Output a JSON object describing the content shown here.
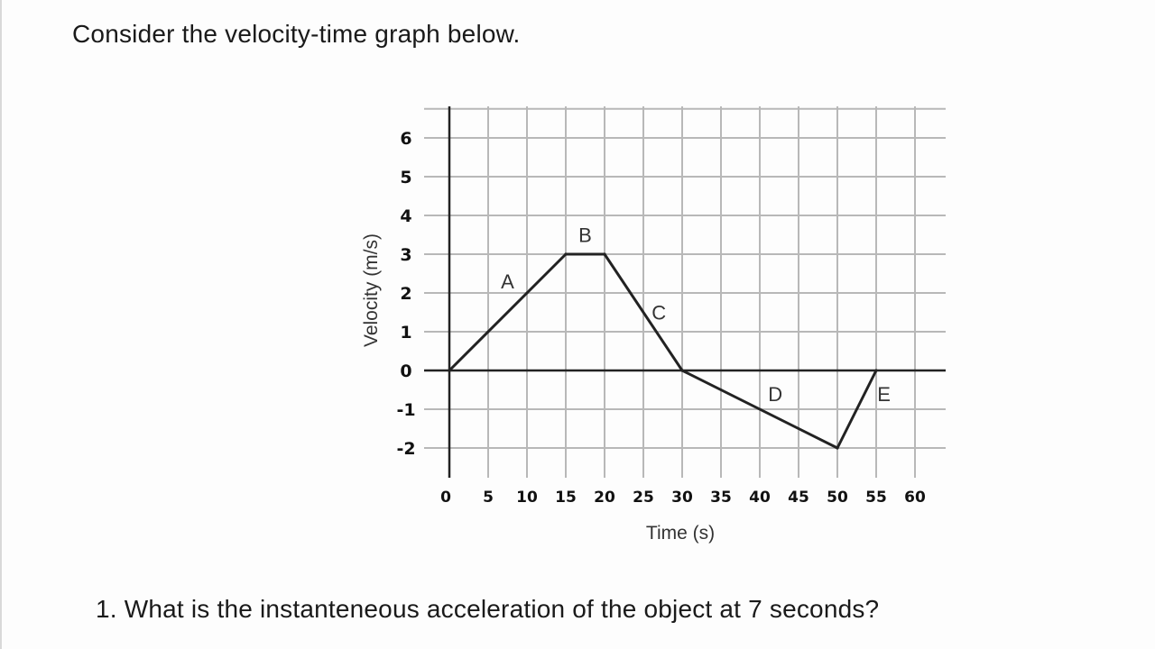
{
  "prompt": "Consider the velocity-time graph below.",
  "question": "1. What is the instanteneous acceleration of the object at 7 seconds?",
  "chart_data": {
    "type": "line",
    "title": "",
    "xlabel": "Time (s)",
    "ylabel": "Velocity (m/s)",
    "xlim": [
      0,
      60
    ],
    "ylim": [
      -2,
      6
    ],
    "grid": true,
    "x_ticks": [
      0,
      5,
      10,
      15,
      20,
      25,
      30,
      35,
      40,
      45,
      50,
      55,
      60
    ],
    "x_tick_labels": [
      "0",
      "5",
      "10",
      "15",
      "20",
      "25",
      "30",
      "35",
      "40",
      "45",
      "50",
      "55",
      "60"
    ],
    "y_ticks": [
      6,
      5,
      4,
      3,
      2,
      1,
      0,
      -1,
      -2
    ],
    "y_tick_labels": [
      "6",
      "5",
      "4",
      "3",
      "2",
      "1",
      "0",
      "-1",
      "-2"
    ],
    "series": [
      {
        "x": [
          0,
          15,
          20,
          30,
          50,
          55
        ],
        "y": [
          0,
          3,
          3,
          0,
          -2,
          0
        ]
      }
    ],
    "segment_labels": [
      {
        "text": "A",
        "x": 7.5,
        "y": 2.3
      },
      {
        "text": "B",
        "x": 17.5,
        "y": 3.5
      },
      {
        "text": "C",
        "x": 27,
        "y": 1.5
      },
      {
        "text": "D",
        "x": 42,
        "y": -0.6
      },
      {
        "text": "E",
        "x": 56,
        "y": -0.6
      }
    ],
    "line_color": "#222222",
    "grid_color": "#b8b8b8"
  }
}
